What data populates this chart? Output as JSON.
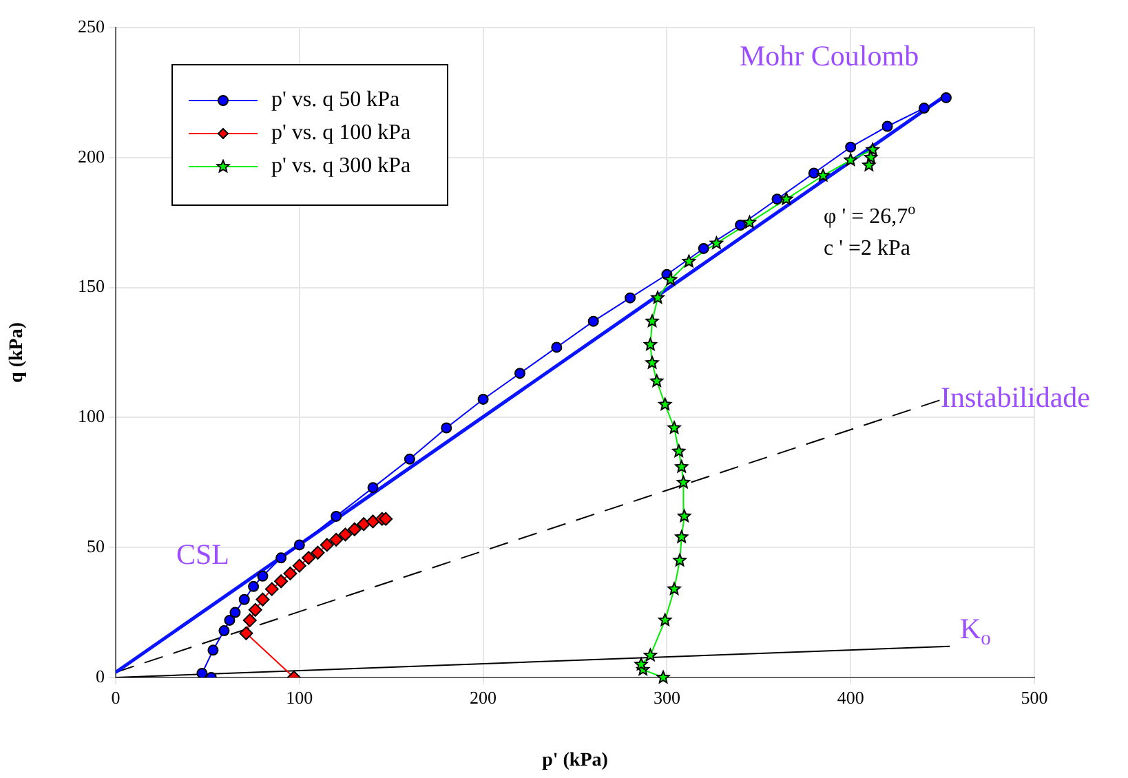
{
  "chart_data": {
    "type": "line",
    "xlabel": "p' (kPa)",
    "ylabel": "q (kPa)",
    "xlim": [
      0,
      500
    ],
    "xticks": [
      0,
      100,
      200,
      300,
      400,
      500
    ],
    "ylim": [
      0,
      250
    ],
    "yticks": [
      0,
      50,
      100,
      150,
      200,
      250
    ],
    "grid": true,
    "legend": "top left",
    "series": [
      {
        "name": "p' vs. q 50 kPa",
        "color": "#0000ff",
        "marker": "circle",
        "x": [
          52,
          47,
          53,
          59,
          62,
          65,
          70,
          75,
          80,
          90,
          100,
          120,
          140,
          160,
          180,
          200,
          220,
          240,
          260,
          280,
          300,
          320,
          340,
          360,
          380,
          400,
          420,
          440,
          452
        ],
        "values": [
          0,
          1.6,
          10.5,
          18,
          22,
          25,
          30,
          35,
          39,
          46,
          51,
          62,
          73,
          84,
          96,
          107,
          117,
          127,
          137,
          146,
          155,
          165,
          174,
          184,
          194,
          204,
          212,
          219,
          223
        ]
      },
      {
        "name": "p' vs. q 100 kPa",
        "color": "#ff0000",
        "marker": "diamond",
        "x": [
          97,
          71,
          73,
          76,
          80,
          85,
          90,
          95,
          100,
          105,
          110,
          115,
          120,
          125,
          130,
          135,
          140,
          145,
          147
        ],
        "values": [
          0,
          17,
          22,
          26,
          30,
          34,
          37,
          40,
          43,
          46,
          48,
          51,
          53,
          55,
          57,
          59,
          60,
          61,
          61
        ]
      },
      {
        "name": "p' vs. q 300 kPa",
        "color": "#00ee00",
        "marker": "star",
        "x": [
          298,
          287,
          286,
          291,
          299,
          304,
          307,
          308,
          309.5,
          309,
          308,
          306.5,
          304,
          299,
          294.5,
          292,
          291,
          292,
          295,
          302,
          312,
          327,
          345,
          365,
          385,
          400,
          412,
          411,
          410
        ],
        "values": [
          0,
          3,
          5,
          8.5,
          22,
          34,
          45,
          54,
          62,
          75,
          81,
          87,
          96,
          105,
          114,
          121,
          128,
          137,
          146,
          153,
          160,
          167,
          175,
          184,
          193,
          199,
          203,
          200,
          197
        ]
      },
      {
        "color": "#0a14ff",
        "marker": "none",
        "line_style": "solid",
        "x": [
          0,
          452
        ],
        "values": [
          2,
          224
        ]
      },
      {
        "color": "#000000",
        "marker": "none",
        "line_style": "dashed",
        "x": [
          0,
          450
        ],
        "values": [
          2,
          107
        ]
      },
      {
        "color": "#000000",
        "marker": "none",
        "line_style": "solid",
        "x": [
          0,
          454
        ],
        "values": [
          0,
          12
        ]
      }
    ],
    "annotations": [
      "Mohr Coulomb",
      "Instabilidade",
      "CSL",
      "K$_{o}$",
      "φ ' = 26,7$^{o}$",
      "c ' =2 kPa"
    ]
  }
}
